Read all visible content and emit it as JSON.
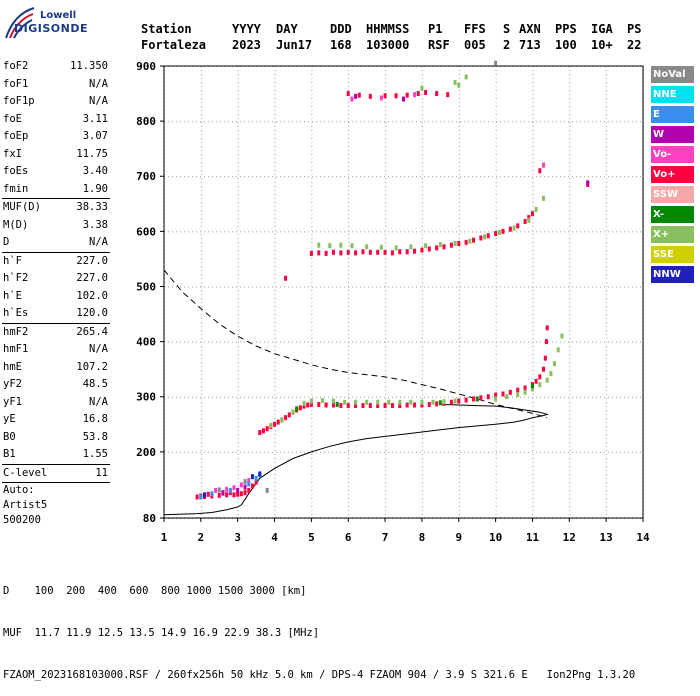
{
  "logo": {
    "line1": "Lowell",
    "line2": "DIGISONDE"
  },
  "header": {
    "row1": [
      "Station",
      "YYYY",
      "DAY",
      "DDD",
      "HHMMSS",
      "P1",
      "FFS",
      "S",
      "AXN",
      "PPS",
      "IGA",
      "PS"
    ],
    "row2": [
      "Fortaleza",
      "2023",
      "Jun17",
      "168",
      "103000",
      "RSF",
      "005",
      "2",
      "713",
      "100",
      "10+",
      "22"
    ]
  },
  "params": [
    {
      "label": "foF2",
      "value": "11.350"
    },
    {
      "label": "foF1",
      "value": "N/A"
    },
    {
      "label": "foF1p",
      "value": "N/A"
    },
    {
      "label": "foE",
      "value": "3.11"
    },
    {
      "label": "foEp",
      "value": "3.07"
    },
    {
      "label": "fxI",
      "value": "11.75"
    },
    {
      "label": "foEs",
      "value": "3.40"
    },
    {
      "label": "fmin",
      "value": "1.90"
    },
    {
      "sep": true
    },
    {
      "label": "MUF(D)",
      "value": "38.33"
    },
    {
      "label": "M(D)",
      "value": "3.38"
    },
    {
      "label": "D",
      "value": "N/A"
    },
    {
      "sep": true
    },
    {
      "label": "h`F",
      "value": "227.0"
    },
    {
      "label": "h`F2",
      "value": "227.0"
    },
    {
      "label": "h`E",
      "value": "102.0"
    },
    {
      "label": "h`Es",
      "value": "120.0"
    },
    {
      "sep": true
    },
    {
      "label": "hmF2",
      "value": "265.4"
    },
    {
      "label": "hmF1",
      "value": "N/A"
    },
    {
      "label": "hmE",
      "value": "107.2"
    },
    {
      "label": "yF2",
      "value": "48.5"
    },
    {
      "label": "yF1",
      "value": "N/A"
    },
    {
      "label": "yE",
      "value": "16.8"
    },
    {
      "label": "B0",
      "value": "53.8"
    },
    {
      "label": "B1",
      "value": "1.55"
    },
    {
      "sep": true
    },
    {
      "label": "C-level",
      "value": "11"
    },
    {
      "sep": true
    }
  ],
  "auto_text": "Auto:\nArtist5\n500200",
  "legend": [
    {
      "label": "NoVal",
      "color": "#888888"
    },
    {
      "label": "NNE",
      "color": "#00e0f0"
    },
    {
      "label": "E",
      "color": "#3a8ef0"
    },
    {
      "label": "W",
      "color": "#b000b0"
    },
    {
      "label": "Vo-",
      "color": "#ff40c0"
    },
    {
      "label": "Vo+",
      "color": "#ff0040"
    },
    {
      "label": "SSW",
      "color": "#f4a8a8"
    },
    {
      "label": "X-",
      "color": "#008800"
    },
    {
      "label": "X+",
      "color": "#88c060"
    },
    {
      "label": "SSE",
      "color": "#d0d000"
    },
    {
      "label": "NNW",
      "color": "#2020c0"
    }
  ],
  "footer": {
    "line1": "D    100  200  400  600  800 1000 1500 3000 [km]",
    "line2": "MUF  11.7 11.9 12.5 13.5 14.9 16.9 22.9 38.3 [MHz]",
    "line3": "FZAOM_2023168103000.RSF / 260fx256h 50 kHz 5.0 km / DPS-4 FZAOM 904 / 3.9 S 321.6 E   Ion2Png 1.3.20"
  },
  "chart_data": {
    "type": "scatter",
    "xlim": [
      1,
      14
    ],
    "ylim": [
      80,
      900
    ],
    "xticks": [
      1,
      2,
      3,
      4,
      5,
      6,
      7,
      8,
      9,
      10,
      11,
      12,
      13,
      14
    ],
    "yticks": [
      80,
      200,
      300,
      400,
      500,
      600,
      700,
      800,
      900
    ],
    "grid": true,
    "series": [
      {
        "color": "#ff0040",
        "points": [
          [
            1.9,
            118
          ],
          [
            2.0,
            120
          ],
          [
            2.1,
            119
          ],
          [
            2.3,
            120
          ],
          [
            2.5,
            121
          ],
          [
            2.7,
            122
          ],
          [
            2.9,
            122
          ],
          [
            3.0,
            123
          ],
          [
            3.1,
            124
          ],
          [
            3.2,
            126
          ],
          [
            3.3,
            130
          ],
          [
            3.4,
            138
          ],
          [
            3.5,
            145
          ],
          [
            2.2,
            123
          ],
          [
            2.6,
            125
          ],
          [
            2.8,
            126
          ],
          [
            3.6,
            235
          ],
          [
            3.7,
            238
          ],
          [
            3.8,
            242
          ],
          [
            3.9,
            246
          ],
          [
            4.0,
            250
          ],
          [
            4.1,
            254
          ],
          [
            4.2,
            258
          ],
          [
            4.3,
            262
          ],
          [
            4.4,
            267
          ],
          [
            4.5,
            272
          ],
          [
            4.6,
            276
          ],
          [
            4.7,
            280
          ],
          [
            4.8,
            283
          ],
          [
            4.9,
            285
          ],
          [
            5.0,
            286
          ],
          [
            5.2,
            286
          ],
          [
            5.4,
            285
          ],
          [
            5.6,
            285
          ],
          [
            5.8,
            284
          ],
          [
            6.0,
            284
          ],
          [
            6.2,
            284
          ],
          [
            6.4,
            284
          ],
          [
            6.6,
            284
          ],
          [
            6.8,
            284
          ],
          [
            7.0,
            284
          ],
          [
            7.2,
            284
          ],
          [
            7.4,
            284
          ],
          [
            7.6,
            285
          ],
          [
            7.8,
            285
          ],
          [
            8.0,
            285
          ],
          [
            8.2,
            286
          ],
          [
            8.4,
            287
          ],
          [
            8.6,
            288
          ],
          [
            8.8,
            290
          ],
          [
            9.0,
            292
          ],
          [
            9.2,
            294
          ],
          [
            9.4,
            296
          ],
          [
            9.6,
            298
          ],
          [
            9.8,
            300
          ],
          [
            10.0,
            303
          ],
          [
            10.2,
            305
          ],
          [
            10.4,
            308
          ],
          [
            10.6,
            312
          ],
          [
            10.8,
            316
          ],
          [
            11.0,
            322
          ],
          [
            11.1,
            328
          ],
          [
            11.2,
            336
          ],
          [
            11.3,
            350
          ],
          [
            11.35,
            370
          ],
          [
            11.38,
            400
          ],
          [
            11.4,
            425
          ],
          [
            5.0,
            560
          ],
          [
            5.2,
            561
          ],
          [
            5.4,
            560
          ],
          [
            5.6,
            562
          ],
          [
            5.8,
            561
          ],
          [
            6.0,
            562
          ],
          [
            6.2,
            561
          ],
          [
            6.4,
            563
          ],
          [
            6.6,
            562
          ],
          [
            6.8,
            562
          ],
          [
            7.0,
            562
          ],
          [
            7.2,
            561
          ],
          [
            7.4,
            563
          ],
          [
            7.6,
            563
          ],
          [
            7.8,
            564
          ],
          [
            8.0,
            566
          ],
          [
            8.2,
            568
          ],
          [
            8.4,
            570
          ],
          [
            8.6,
            572
          ],
          [
            8.8,
            575
          ],
          [
            9.0,
            578
          ],
          [
            9.2,
            580
          ],
          [
            9.4,
            584
          ],
          [
            9.6,
            588
          ],
          [
            9.8,
            592
          ],
          [
            10.0,
            596
          ],
          [
            10.2,
            600
          ],
          [
            10.4,
            604
          ],
          [
            10.6,
            610
          ],
          [
            10.8,
            618
          ],
          [
            10.9,
            625
          ],
          [
            11.0,
            632
          ],
          [
            6.0,
            850
          ],
          [
            6.3,
            847
          ],
          [
            6.6,
            845
          ],
          [
            7.0,
            846
          ],
          [
            7.3,
            846
          ],
          [
            7.6,
            847
          ],
          [
            7.9,
            850
          ],
          [
            8.1,
            852
          ],
          [
            8.4,
            850
          ],
          [
            8.7,
            848
          ],
          [
            4.3,
            515
          ],
          [
            12.5,
            685
          ],
          [
            11.2,
            710
          ]
        ]
      },
      {
        "color": "#88c060",
        "points": [
          [
            3.9,
            248
          ],
          [
            4.2,
            258
          ],
          [
            4.5,
            272
          ],
          [
            4.8,
            288
          ],
          [
            5.0,
            292
          ],
          [
            5.3,
            293
          ],
          [
            5.6,
            292
          ],
          [
            5.9,
            290
          ],
          [
            6.2,
            290
          ],
          [
            6.5,
            290
          ],
          [
            6.8,
            290
          ],
          [
            7.1,
            290
          ],
          [
            7.4,
            290
          ],
          [
            7.7,
            290
          ],
          [
            8.0,
            290
          ],
          [
            8.3,
            290
          ],
          [
            8.6,
            291
          ],
          [
            8.9,
            292
          ],
          [
            10.0,
            296
          ],
          [
            10.3,
            300
          ],
          [
            10.6,
            304
          ],
          [
            10.8,
            308
          ],
          [
            11.0,
            314
          ],
          [
            11.2,
            322
          ],
          [
            11.4,
            330
          ],
          [
            11.5,
            342
          ],
          [
            11.6,
            360
          ],
          [
            11.7,
            385
          ],
          [
            11.8,
            410
          ],
          [
            5.2,
            575
          ],
          [
            5.5,
            574
          ],
          [
            5.8,
            575
          ],
          [
            6.1,
            574
          ],
          [
            6.5,
            572
          ],
          [
            6.9,
            571
          ],
          [
            7.3,
            570
          ],
          [
            7.7,
            572
          ],
          [
            8.1,
            574
          ],
          [
            8.5,
            576
          ],
          [
            8.9,
            578
          ],
          [
            9.3,
            582
          ],
          [
            9.7,
            590
          ],
          [
            10.1,
            598
          ],
          [
            10.5,
            606
          ],
          [
            10.9,
            620
          ],
          [
            11.1,
            640
          ],
          [
            11.3,
            660
          ],
          [
            9.0,
            865
          ],
          [
            8.9,
            870
          ],
          [
            9.2,
            880
          ],
          [
            8.0,
            860
          ]
        ]
      },
      {
        "color": "#ff40c0",
        "points": [
          [
            2.4,
            130
          ],
          [
            2.7,
            132
          ],
          [
            2.9,
            135
          ],
          [
            3.1,
            140
          ],
          [
            3.3,
            148
          ],
          [
            6.1,
            840
          ],
          [
            6.9,
            842
          ],
          [
            7.8,
            848
          ],
          [
            11.3,
            720
          ]
        ]
      },
      {
        "color": "#b000b0",
        "points": [
          [
            2.6,
            126
          ],
          [
            3.0,
            130
          ],
          [
            3.2,
            136
          ],
          [
            6.2,
            845
          ],
          [
            7.5,
            840
          ],
          [
            12.5,
            688
          ]
        ]
      },
      {
        "color": "#3a8ef0",
        "points": [
          [
            2.0,
            118
          ],
          [
            2.3,
            124
          ],
          [
            3.3,
            142
          ],
          [
            3.5,
            152
          ],
          [
            3.6,
            158
          ],
          [
            2.8,
            130
          ]
        ]
      },
      {
        "color": "#2020c0",
        "points": [
          [
            2.1,
            122
          ],
          [
            3.4,
            155
          ],
          [
            3.6,
            160
          ]
        ]
      },
      {
        "color": "#008800",
        "points": [
          [
            5.7,
            286
          ],
          [
            8.5,
            289
          ],
          [
            9.5,
            296
          ],
          [
            11.0,
            320
          ],
          [
            4.6,
            278
          ]
        ]
      },
      {
        "color": "#888888",
        "points": [
          [
            3.2,
            146
          ],
          [
            2.5,
            131
          ],
          [
            3.8,
            130
          ],
          [
            10.0,
            905
          ]
        ]
      }
    ],
    "curves": [
      {
        "style": "dashed",
        "points": [
          [
            1.0,
            530
          ],
          [
            1.5,
            490
          ],
          [
            2.0,
            460
          ],
          [
            2.5,
            432
          ],
          [
            3.0,
            410
          ],
          [
            3.5,
            392
          ],
          [
            4.0,
            378
          ],
          [
            4.5,
            368
          ],
          [
            5.0,
            358
          ],
          [
            5.5,
            350
          ],
          [
            6.0,
            344
          ],
          [
            6.5,
            340
          ],
          [
            7.0,
            336
          ],
          [
            7.5,
            330
          ],
          [
            8.0,
            322
          ],
          [
            8.5,
            314
          ],
          [
            9.0,
            305
          ],
          [
            9.5,
            296
          ],
          [
            10.0,
            286
          ],
          [
            10.5,
            278
          ],
          [
            11.0,
            270
          ],
          [
            11.3,
            264
          ],
          [
            11.4,
            262
          ]
        ]
      },
      {
        "style": "solid",
        "points": [
          [
            1.0,
            86
          ],
          [
            1.5,
            87
          ],
          [
            1.9,
            88
          ],
          [
            2.3,
            90
          ],
          [
            2.7,
            95
          ],
          [
            3.0,
            100
          ],
          [
            3.1,
            104
          ],
          [
            3.3,
            124
          ],
          [
            3.6,
            152
          ],
          [
            4.0,
            170
          ],
          [
            4.5,
            188
          ],
          [
            5.0,
            200
          ],
          [
            5.5,
            210
          ],
          [
            6.0,
            218
          ],
          [
            6.5,
            224
          ],
          [
            7.0,
            228
          ],
          [
            7.5,
            232
          ],
          [
            8.0,
            236
          ],
          [
            8.5,
            240
          ],
          [
            9.0,
            244
          ],
          [
            9.5,
            247
          ],
          [
            10.0,
            250
          ],
          [
            10.5,
            254
          ],
          [
            10.8,
            258
          ],
          [
            11.0,
            262
          ],
          [
            11.3,
            266
          ],
          [
            11.4,
            268
          ],
          [
            11.2,
            272
          ],
          [
            10.8,
            276
          ],
          [
            10.4,
            280
          ],
          [
            10.0,
            283
          ],
          [
            9.5,
            284
          ],
          [
            9.0,
            285
          ],
          [
            8.5,
            286
          ]
        ]
      }
    ]
  }
}
